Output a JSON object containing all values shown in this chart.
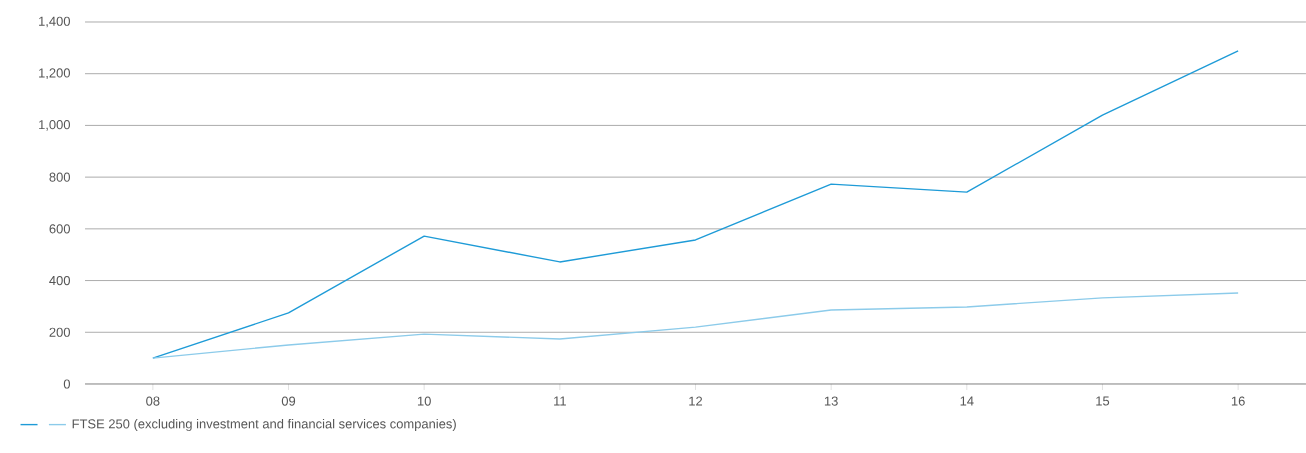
{
  "chart_data": {
    "type": "line",
    "categories": [
      "08",
      "09",
      "10",
      "11",
      "12",
      "13",
      "14",
      "15",
      "16"
    ],
    "series": [
      {
        "color": "#1e9bd7",
        "values": [
          100,
          275,
          572,
          472,
          557,
          773,
          742,
          1040,
          1288
        ]
      },
      {
        "name": "FTSE 250 (excluding investment and financial services companies)",
        "color": "#8ccbea",
        "values": [
          100,
          151,
          193,
          174,
          220,
          286,
          298,
          333,
          352
        ]
      }
    ],
    "ylim": [
      0,
      1400
    ],
    "yticks": [
      0,
      200,
      400,
      600,
      800,
      {
        "value": 1000,
        "label": "1,000"
      },
      {
        "value": 1200,
        "label": "1,200"
      },
      {
        "value": 1400,
        "label": "1,400"
      }
    ],
    "grid": "y",
    "legend": "bottom left",
    "marker": "none",
    "line_style": "solid"
  }
}
